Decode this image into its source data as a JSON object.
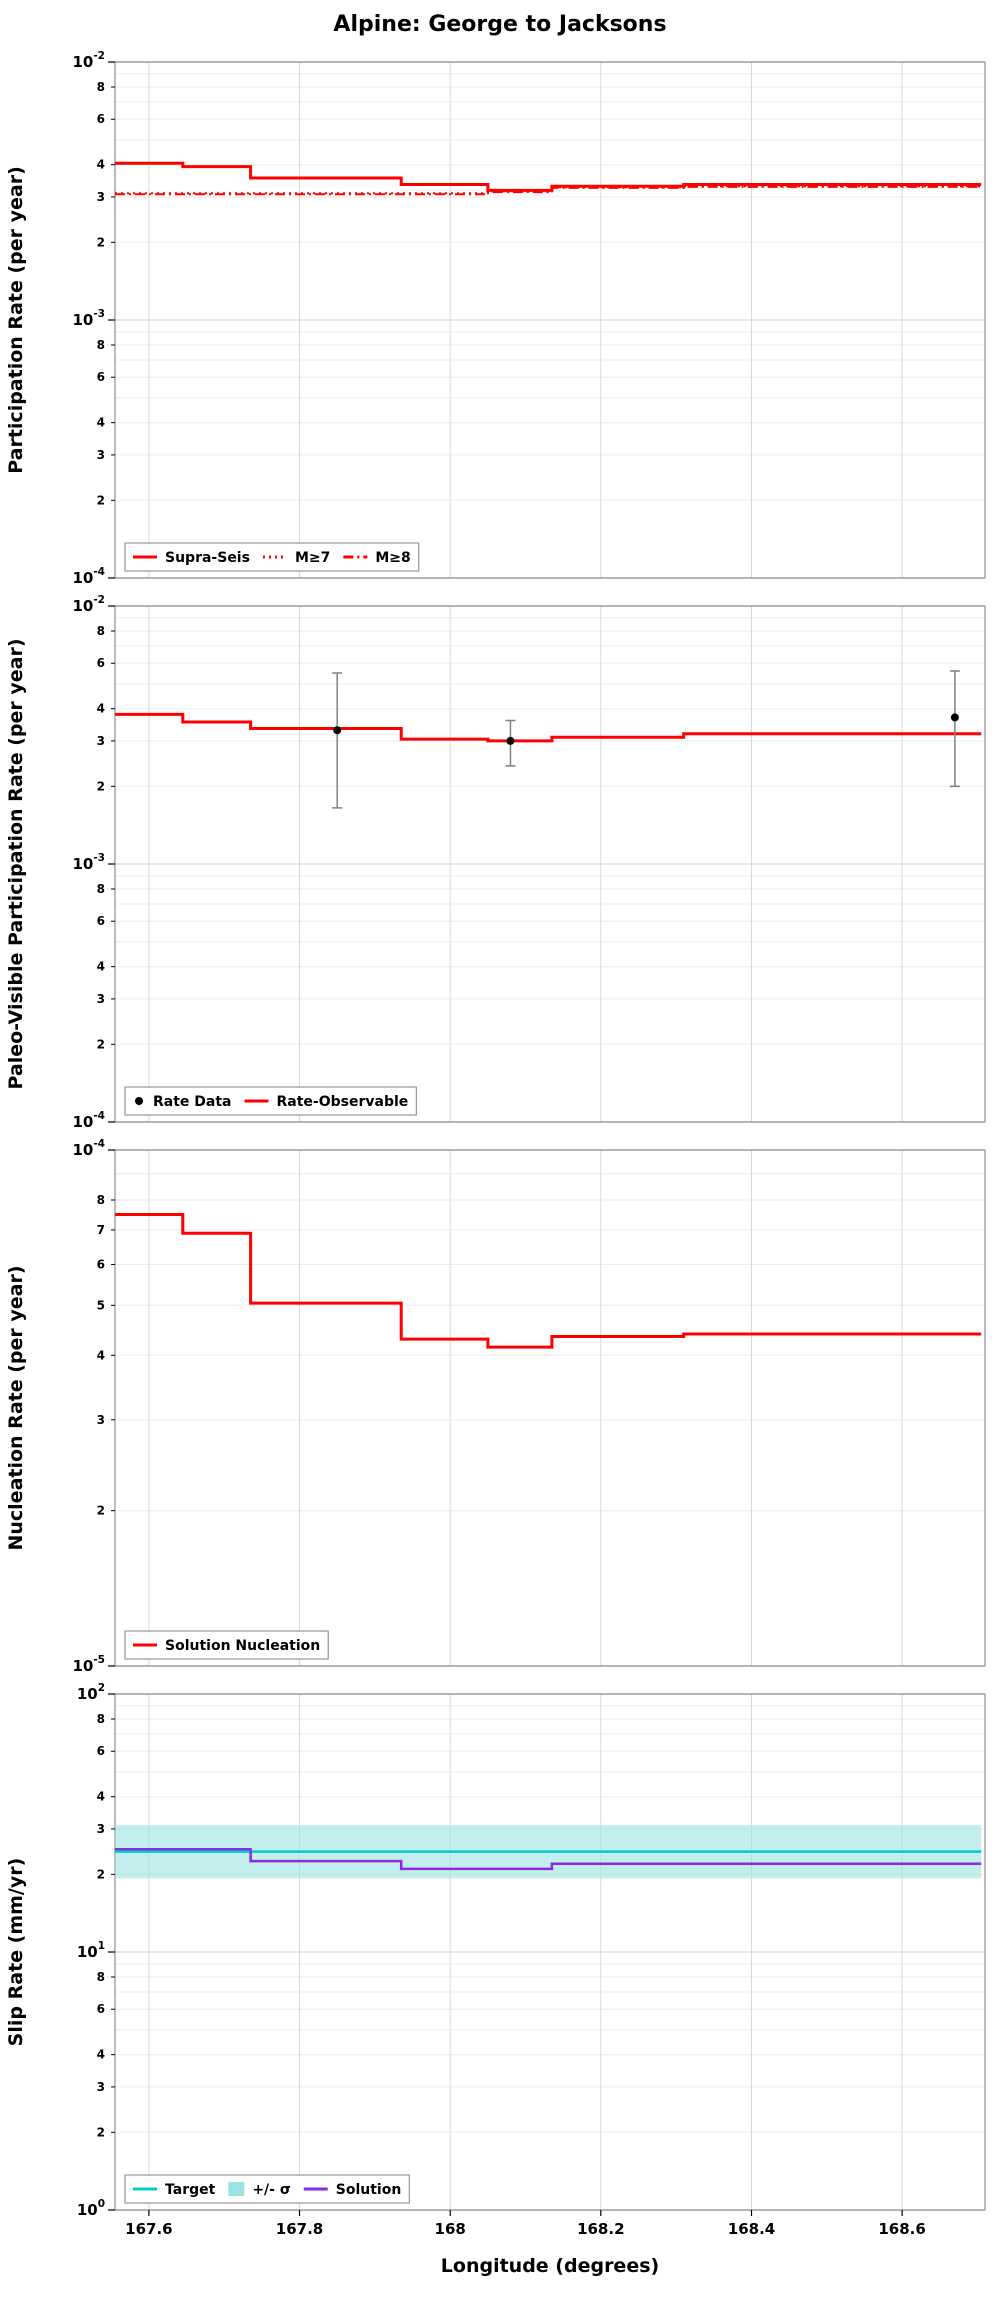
{
  "title": "Alpine: George to Jacksons",
  "xlabel": "Longitude (degrees)",
  "x_axis": {
    "xlim": [
      167.555,
      168.71
    ],
    "ticks": [
      167.6,
      167.8,
      168.0,
      168.2,
      168.4,
      168.6
    ],
    "tick_labels": [
      "167.6",
      "167.8",
      "168",
      "168.2",
      "168.4",
      "168.6"
    ]
  },
  "colors": {
    "line_red": "#ff0000",
    "data_black": "#000000",
    "errorbar_gray": "#808080",
    "target_cyan": "#00cccc",
    "sigma_band": "#9be3e3",
    "solution_purple": "#8a2be2",
    "grid_major": "#d9d9d9",
    "grid_minor": "#ededed",
    "frame": "#8c8c8c"
  },
  "chart_data": [
    {
      "type": "line",
      "ylabel": "Participation Rate (per year)",
      "yscale": "log",
      "ylim": [
        0.0001,
        0.01
      ],
      "ylog_range": [
        -4,
        -2
      ],
      "minor_tick_labels": [
        2,
        3,
        4,
        6,
        8
      ],
      "show_x_labels": false,
      "legend": [
        {
          "label": "Supra-Seis",
          "type": "line",
          "color": "#ff0000",
          "dash": "solid"
        },
        {
          "label": "M≥7",
          "type": "line",
          "color": "#ff0000",
          "dash": "dotted"
        },
        {
          "label": "M≥8",
          "type": "line",
          "color": "#ff0000",
          "dash": "dashdot"
        }
      ],
      "series": [
        {
          "name": "M≥8",
          "kind": "steps",
          "color": "#ff0000",
          "dash": "dashdot",
          "width": 2,
          "steps": [
            [
              167.555,
              168.05,
              0.00307
            ],
            [
              168.05,
              168.135,
              0.00313
            ],
            [
              168.135,
              168.31,
              0.00325
            ],
            [
              168.31,
              168.705,
              0.00328
            ]
          ]
        },
        {
          "name": "M≥7",
          "kind": "steps",
          "color": "#ff0000",
          "dash": "dotted",
          "width": 2,
          "steps": [
            [
              167.555,
              168.05,
              0.0031
            ],
            [
              168.05,
              168.135,
              0.00315
            ],
            [
              168.135,
              168.31,
              0.00327
            ],
            [
              168.31,
              168.705,
              0.0033
            ]
          ]
        },
        {
          "name": "Supra-Seis",
          "kind": "steps",
          "color": "#ff0000",
          "dash": "solid",
          "width": 3,
          "steps": [
            [
              167.555,
              167.645,
              0.00405
            ],
            [
              167.645,
              167.735,
              0.00393
            ],
            [
              167.735,
              167.935,
              0.00355
            ],
            [
              167.935,
              168.05,
              0.00335
            ],
            [
              168.05,
              168.135,
              0.00318
            ],
            [
              168.135,
              168.31,
              0.0033
            ],
            [
              168.31,
              168.705,
              0.00335
            ]
          ]
        }
      ]
    },
    {
      "type": "line",
      "ylabel": "Paleo-Visible Participation Rate (per year)",
      "yscale": "log",
      "ylim": [
        0.0001,
        0.01
      ],
      "ylog_range": [
        -4,
        -2
      ],
      "minor_tick_labels": [
        2,
        3,
        4,
        6,
        8
      ],
      "show_x_labels": false,
      "legend": [
        {
          "label": "Rate Data",
          "type": "dot",
          "color": "#000000"
        },
        {
          "label": "Rate-Observable",
          "type": "line",
          "color": "#ff0000",
          "dash": "solid"
        }
      ],
      "series": [
        {
          "name": "Rate-Observable",
          "kind": "steps",
          "color": "#ff0000",
          "dash": "solid",
          "width": 3,
          "steps": [
            [
              167.555,
              167.645,
              0.0038
            ],
            [
              167.645,
              167.735,
              0.00355
            ],
            [
              167.735,
              167.935,
              0.00335
            ],
            [
              167.935,
              168.05,
              0.00305
            ],
            [
              168.05,
              168.135,
              0.003
            ],
            [
              168.135,
              168.31,
              0.0031
            ],
            [
              168.31,
              168.705,
              0.0032
            ]
          ]
        },
        {
          "name": "Rate Data",
          "kind": "points",
          "color": "#000000",
          "bar_color": "#808080",
          "points": [
            [
              167.85,
              0.0033,
              0.00165,
              0.0055
            ],
            [
              168.08,
              0.003,
              0.0024,
              0.0036
            ],
            [
              168.67,
              0.0037,
              0.002,
              0.0056
            ]
          ]
        }
      ]
    },
    {
      "type": "line",
      "ylabel": "Nucleation Rate (per year)",
      "yscale": "log",
      "ylim": [
        1e-05,
        0.0001
      ],
      "ylog_range": [
        -5,
        -4
      ],
      "minor_tick_labels": [
        2,
        3,
        4,
        5,
        6,
        7,
        8
      ],
      "show_x_labels": false,
      "legend": [
        {
          "label": "Solution Nucleation",
          "type": "line",
          "color": "#ff0000",
          "dash": "solid"
        }
      ],
      "series": [
        {
          "name": "Solution Nucleation",
          "kind": "steps",
          "color": "#ff0000",
          "dash": "solid",
          "width": 3,
          "steps": [
            [
              167.555,
              167.645,
              7.5e-05
            ],
            [
              167.645,
              167.735,
              6.9e-05
            ],
            [
              167.735,
              167.935,
              5.05e-05
            ],
            [
              167.935,
              168.05,
              4.3e-05
            ],
            [
              168.05,
              168.135,
              4.15e-05
            ],
            [
              168.135,
              168.31,
              4.35e-05
            ],
            [
              168.31,
              168.705,
              4.4e-05
            ]
          ]
        }
      ]
    },
    {
      "type": "line",
      "ylabel": "Slip Rate (mm/yr)",
      "yscale": "log",
      "ylim": [
        1,
        100
      ],
      "ylog_range": [
        0,
        2
      ],
      "minor_tick_labels": [
        2,
        3,
        4,
        6,
        8
      ],
      "show_x_labels": true,
      "legend": [
        {
          "label": "Target",
          "type": "line",
          "color": "#00cccc",
          "dash": "solid"
        },
        {
          "label": "+/- σ",
          "type": "patch",
          "color": "#9be3e3"
        },
        {
          "label": "Solution",
          "type": "line",
          "color": "#8a2be2",
          "dash": "solid"
        }
      ],
      "series": [
        {
          "name": "+/- σ",
          "kind": "band",
          "color": "#9be3e3",
          "opacity": 0.6,
          "steps": [
            [
              167.555,
              168.705,
              19.3,
              31.0
            ]
          ]
        },
        {
          "name": "Target",
          "kind": "steps",
          "color": "#00cccc",
          "dash": "solid",
          "width": 2.5,
          "steps": [
            [
              167.555,
              168.705,
              24.5
            ]
          ]
        },
        {
          "name": "Solution",
          "kind": "steps",
          "color": "#8a2be2",
          "dash": "solid",
          "width": 2.5,
          "steps": [
            [
              167.555,
              167.735,
              25.0
            ],
            [
              167.735,
              167.935,
              22.5
            ],
            [
              167.935,
              168.135,
              21.0
            ],
            [
              168.135,
              168.705,
              22.0
            ]
          ]
        }
      ]
    }
  ]
}
